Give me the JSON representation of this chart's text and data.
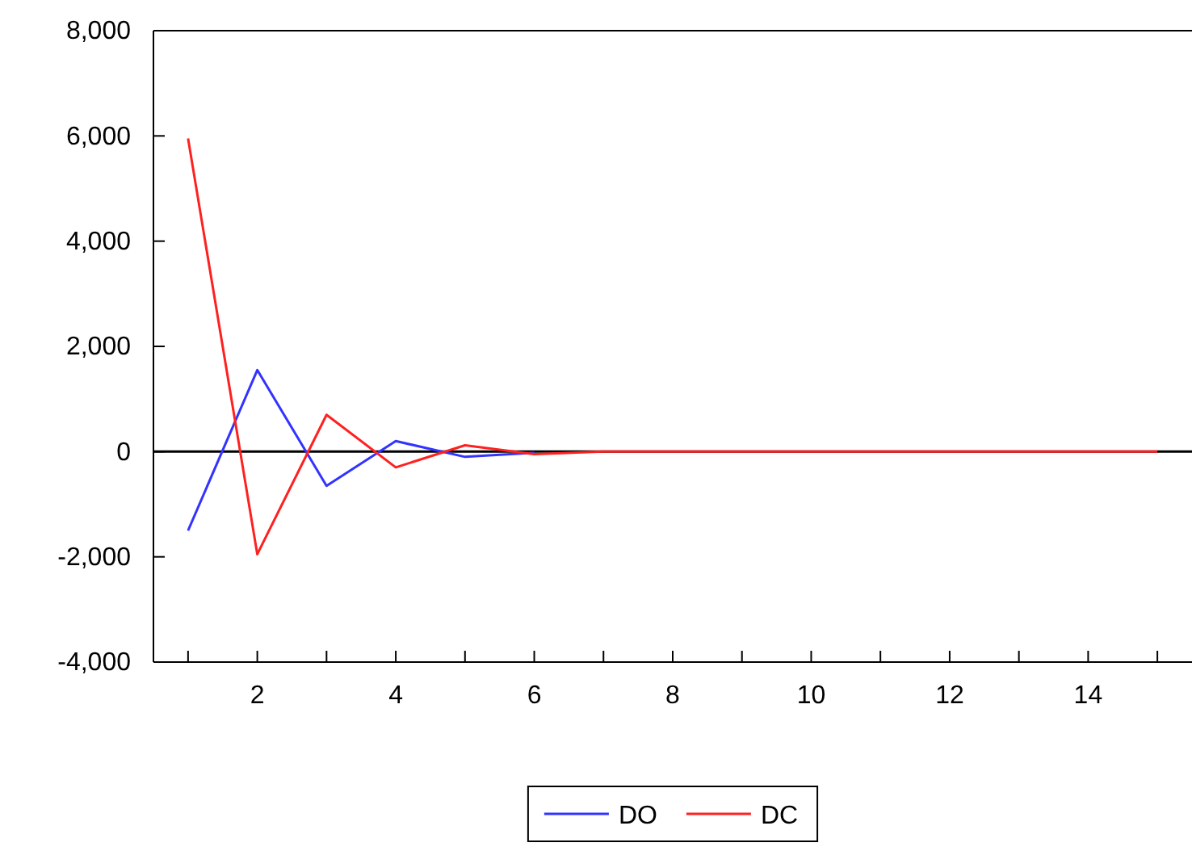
{
  "chart_data": {
    "type": "line",
    "x": [
      1,
      2,
      3,
      4,
      5,
      6,
      7,
      8,
      9,
      10,
      11,
      12,
      13,
      14,
      15
    ],
    "series": [
      {
        "name": "DO",
        "color": "#3333ff",
        "values": [
          -1500,
          1550,
          -650,
          200,
          -100,
          -20,
          null,
          null,
          null,
          null,
          null,
          null,
          null,
          null,
          null
        ]
      },
      {
        "name": "DC",
        "color": "#ff2020",
        "values": [
          5950,
          -1950,
          700,
          -300,
          120,
          -50,
          0,
          0,
          0,
          0,
          0,
          0,
          0,
          0,
          0
        ]
      }
    ],
    "xlim": [
      0.5,
      15.5
    ],
    "xticks": [
      {
        "value": 1,
        "label": null
      },
      2,
      {
        "value": 3,
        "label": null
      },
      4,
      {
        "value": 5,
        "label": null
      },
      6,
      {
        "value": 7,
        "label": null
      },
      8,
      {
        "value": 9,
        "label": null
      },
      10,
      {
        "value": 11,
        "label": null
      },
      12,
      {
        "value": 13,
        "label": null
      },
      14,
      {
        "value": 15,
        "label": null
      }
    ],
    "ylim": [
      -4000,
      8000
    ],
    "yticks": [
      {
        "value": -4000,
        "label": "-4,000"
      },
      {
        "value": -2000,
        "label": "-2,000"
      },
      0,
      {
        "value": 2000,
        "label": "2,000"
      },
      {
        "value": 4000,
        "label": "4,000"
      },
      {
        "value": 6000,
        "label": "6,000"
      },
      {
        "value": 8000,
        "label": "8,000"
      }
    ],
    "ref_lines": [
      {
        "axis": "y",
        "value": 0,
        "color": "#000000"
      }
    ],
    "grid": false,
    "legend": "bottom"
  }
}
